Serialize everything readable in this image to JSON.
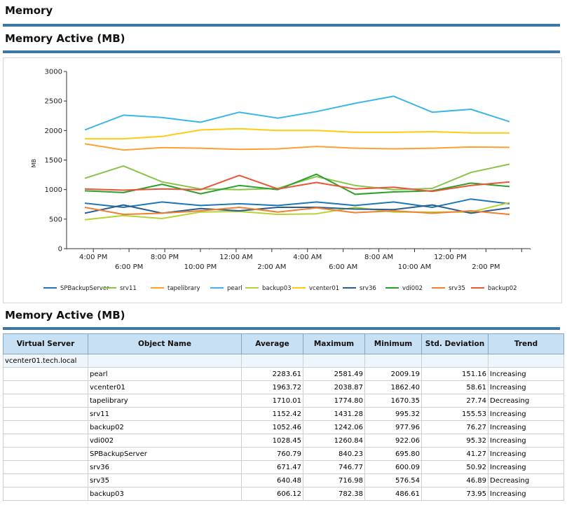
{
  "sections": {
    "memory_title": "Memory",
    "chart_title": "Memory Active (MB)",
    "table_title": "Memory Active (MB)"
  },
  "chart_data": {
    "type": "line",
    "ylabel": "MB",
    "ylim": [
      0,
      3000
    ],
    "y_ticks": [
      "0",
      "500",
      "1000",
      "1500",
      "2000",
      "2500",
      "3000"
    ],
    "x_ticks_row1": [
      "4:00 PM",
      "8:00 PM",
      "12:00 AM",
      "4:00 AM",
      "8:00 AM",
      "12:00 PM"
    ],
    "x_ticks_row2": [
      "6:00 PM",
      "10:00 PM",
      "2:00 AM",
      "6:00 AM",
      "10:00 AM",
      "2:00 PM"
    ],
    "legend_position": "bottom",
    "grid": false,
    "series": [
      {
        "name": "SPBackupServer",
        "color": "#1f77b4",
        "values": [
          770,
          700,
          790,
          730,
          760,
          730,
          790,
          730,
          790,
          700,
          840,
          760
        ]
      },
      {
        "name": "srv11",
        "color": "#8bc34a",
        "values": [
          1190,
          1400,
          1130,
          1010,
          1000,
          1020,
          1220,
          1070,
          1000,
          1020,
          1290,
          1430
        ]
      },
      {
        "name": "tapelibrary",
        "color": "#ff9f2e",
        "values": [
          1775,
          1670,
          1710,
          1700,
          1680,
          1690,
          1730,
          1700,
          1690,
          1700,
          1720,
          1715
        ]
      },
      {
        "name": "pearl",
        "color": "#3bb6e8",
        "values": [
          2010,
          2260,
          2220,
          2140,
          2310,
          2210,
          2320,
          2460,
          2580,
          2310,
          2360,
          2150
        ]
      },
      {
        "name": "backup03",
        "color": "#b5d334",
        "values": [
          490,
          560,
          510,
          620,
          630,
          580,
          590,
          700,
          620,
          620,
          620,
          780
        ]
      },
      {
        "name": "vcenter01",
        "color": "#ffcc11",
        "values": [
          1860,
          1860,
          1900,
          2010,
          2030,
          2000,
          2000,
          1970,
          1970,
          1980,
          1960,
          1960
        ]
      },
      {
        "name": "srv36",
        "color": "#2c5e8c",
        "values": [
          600,
          740,
          600,
          680,
          640,
          700,
          700,
          670,
          660,
          740,
          600,
          690
        ]
      },
      {
        "name": "vdi002",
        "color": "#2ca02c",
        "values": [
          980,
          950,
          1090,
          930,
          1070,
          1000,
          1260,
          920,
          960,
          980,
          1110,
          1050
        ]
      },
      {
        "name": "srv35",
        "color": "#f07f2f",
        "values": [
          700,
          580,
          600,
          640,
          700,
          620,
          690,
          610,
          640,
          600,
          640,
          580
        ]
      },
      {
        "name": "backup02",
        "color": "#e8553a",
        "values": [
          1010,
          990,
          1010,
          1000,
          1240,
          1010,
          1120,
          1010,
          1040,
          970,
          1070,
          1130
        ]
      }
    ]
  },
  "table": {
    "headers": [
      "Virtual Server",
      "Object Name",
      "Average",
      "Maximum",
      "Minimum",
      "Std. Deviation",
      "Trend"
    ],
    "group": "vcenter01.tech.local",
    "rows": [
      {
        "object": "pearl",
        "average": "2283.61",
        "maximum": "2581.49",
        "minimum": "2009.19",
        "std": "151.16",
        "trend": "Increasing"
      },
      {
        "object": "vcenter01",
        "average": "1963.72",
        "maximum": "2038.87",
        "minimum": "1862.40",
        "std": "58.61",
        "trend": "Increasing"
      },
      {
        "object": "tapelibrary",
        "average": "1710.01",
        "maximum": "1774.80",
        "minimum": "1670.35",
        "std": "27.74",
        "trend": "Decreasing"
      },
      {
        "object": "srv11",
        "average": "1152.42",
        "maximum": "1431.28",
        "minimum": "995.32",
        "std": "155.53",
        "trend": "Increasing"
      },
      {
        "object": "backup02",
        "average": "1052.46",
        "maximum": "1242.06",
        "minimum": "977.96",
        "std": "76.27",
        "trend": "Increasing"
      },
      {
        "object": "vdi002",
        "average": "1028.45",
        "maximum": "1260.84",
        "minimum": "922.06",
        "std": "95.32",
        "trend": "Increasing"
      },
      {
        "object": "SPBackupServer",
        "average": "760.79",
        "maximum": "840.23",
        "minimum": "695.80",
        "std": "41.27",
        "trend": "Increasing"
      },
      {
        "object": "srv36",
        "average": "671.47",
        "maximum": "746.77",
        "minimum": "600.09",
        "std": "50.92",
        "trend": "Increasing"
      },
      {
        "object": "srv35",
        "average": "640.48",
        "maximum": "716.98",
        "minimum": "576.54",
        "std": "46.89",
        "trend": "Decreasing"
      },
      {
        "object": "backup03",
        "average": "606.12",
        "maximum": "782.38",
        "minimum": "486.61",
        "std": "73.95",
        "trend": "Increasing"
      }
    ]
  }
}
